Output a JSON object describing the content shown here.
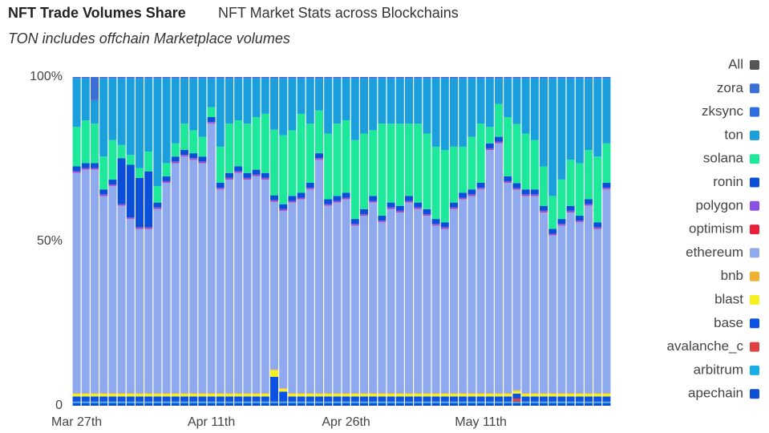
{
  "chart_data": {
    "type": "bar",
    "stacked": true,
    "title": "NFT Trade Volumes Share",
    "subtitle": "NFT Market Stats across Blockchains",
    "annotation": "TON includes offchain Marketplace volumes",
    "categories": [
      "Mar 27th",
      null,
      null,
      null,
      null,
      null,
      null,
      null,
      null,
      null,
      null,
      null,
      null,
      null,
      null,
      "Apr 11th",
      null,
      null,
      null,
      null,
      null,
      null,
      null,
      null,
      null,
      null,
      null,
      null,
      null,
      null,
      "Apr 26th",
      null,
      null,
      null,
      null,
      null,
      null,
      null,
      null,
      null,
      null,
      null,
      null,
      null,
      null,
      "May 11th",
      null,
      null,
      null,
      null,
      null,
      null,
      null,
      null,
      null,
      null,
      null,
      null,
      null,
      null
    ],
    "ylim": [
      0,
      100
    ],
    "yticks": [
      {
        "value": 0,
        "label": "0"
      },
      {
        "value": 50,
        "label": "50%"
      },
      {
        "value": 100,
        "label": "100%"
      }
    ],
    "legend_all": {
      "name": "All",
      "color": "#555555"
    },
    "series": [
      {
        "name": "apechain",
        "color": "#0a4fd6",
        "values": [
          0.8,
          0.8,
          0.8,
          0.8,
          0.8,
          0.8,
          0.8,
          0.8,
          0.8,
          0.8,
          0.8,
          0.8,
          0.8,
          0.8,
          0.8,
          0.8,
          0.8,
          0.8,
          0.8,
          0.8,
          0.8,
          0.8,
          0.8,
          0.8,
          0.8,
          0.8,
          0.8,
          0.8,
          0.8,
          0.8,
          0.8,
          0.8,
          0.8,
          0.8,
          0.8,
          0.8,
          0.8,
          0.8,
          0.8,
          0.8,
          0.8,
          0.8,
          0.8,
          0.8,
          0.8,
          0.8,
          0.8,
          0.8,
          0.8,
          0.8,
          0.8,
          0.8,
          0.8,
          0.8,
          0.8,
          0.8,
          0.8,
          0.8,
          0.8,
          0.8
        ]
      },
      {
        "name": "arbitrum",
        "color": "#1aaee8",
        "values": [
          0.4,
          0.4,
          0.4,
          0.4,
          0.4,
          0.4,
          0.4,
          0.4,
          0.4,
          0.4,
          0.4,
          0.4,
          0.4,
          0.4,
          0.4,
          0.4,
          0.4,
          0.4,
          0.4,
          0.4,
          0.4,
          0.4,
          0.4,
          0.4,
          0.4,
          0.4,
          0.4,
          0.4,
          0.4,
          0.4,
          0.4,
          0.4,
          0.4,
          0.4,
          0.4,
          0.4,
          0.4,
          0.4,
          0.4,
          0.4,
          0.4,
          0.4,
          0.4,
          0.4,
          0.4,
          0.4,
          0.4,
          0.4,
          0.4,
          0.4,
          0.4,
          0.4,
          0.4,
          0.4,
          0.4,
          0.4,
          0.4,
          0.4,
          0.4,
          0.4
        ]
      },
      {
        "name": "avalanche_c",
        "color": "#e04040",
        "values": [
          0.1,
          0.1,
          0.1,
          0.1,
          0.1,
          0.1,
          0.1,
          0.1,
          0.1,
          0.1,
          0.1,
          0.1,
          0.1,
          0.1,
          0.1,
          0.1,
          0.1,
          0.1,
          0.1,
          0.1,
          0.1,
          0.1,
          0.1,
          0.1,
          0.1,
          0.1,
          0.1,
          0.1,
          0.1,
          0.1,
          0.1,
          0.1,
          0.1,
          0.1,
          0.1,
          0.1,
          0.1,
          0.1,
          0.1,
          0.1,
          0.1,
          0.1,
          0.1,
          0.1,
          0.1,
          0.1,
          0.1,
          0.1,
          0.1,
          1.0,
          0.1,
          0.1,
          0.1,
          0.1,
          0.1,
          0.1,
          0.1,
          0.1,
          0.1,
          0.1
        ]
      },
      {
        "name": "base",
        "color": "#0a52e6",
        "values": [
          1.5,
          1.5,
          1.5,
          1.5,
          1.5,
          1.5,
          1.5,
          1.5,
          1.5,
          1.5,
          1.5,
          1.5,
          1.5,
          1.5,
          1.5,
          1.5,
          1.5,
          1.5,
          1.5,
          1.5,
          1.5,
          1.5,
          7.5,
          3,
          1.5,
          1.5,
          1.5,
          1.5,
          1.5,
          1.5,
          1.5,
          1.5,
          1.5,
          1.5,
          1.5,
          1.5,
          1.5,
          1.5,
          1.5,
          1.5,
          1.5,
          1.5,
          1.5,
          1.5,
          1.5,
          1.5,
          1.5,
          1.5,
          1.5,
          1.5,
          1.5,
          1.5,
          1.5,
          1.5,
          1.5,
          1.5,
          1.5,
          1.5,
          1.5,
          1.5
        ]
      },
      {
        "name": "blast",
        "color": "#f4f020",
        "values": [
          0.8,
          0.8,
          0.8,
          0.8,
          0.8,
          0.8,
          0.8,
          0.8,
          0.8,
          0.8,
          0.8,
          0.8,
          0.8,
          0.8,
          0.8,
          0.8,
          0.8,
          0.8,
          0.8,
          0.8,
          0.8,
          0.8,
          2,
          0.8,
          0.8,
          0.8,
          0.8,
          0.8,
          0.8,
          0.8,
          0.8,
          0.8,
          0.8,
          0.8,
          0.8,
          0.8,
          0.8,
          0.8,
          0.8,
          0.8,
          0.8,
          0.8,
          0.8,
          0.8,
          0.8,
          0.8,
          0.8,
          0.8,
          0.8,
          0.8,
          0.8,
          0.8,
          0.8,
          0.8,
          0.8,
          0.8,
          0.8,
          0.8,
          0.8,
          0.8
        ]
      },
      {
        "name": "bnb",
        "color": "#f0b030",
        "values": [
          0.2,
          0.2,
          0.2,
          0.2,
          0.2,
          0.2,
          0.2,
          0.2,
          0.2,
          0.2,
          0.2,
          0.2,
          0.2,
          0.2,
          0.2,
          0.2,
          0.2,
          0.2,
          0.2,
          0.2,
          0.2,
          0.2,
          0.2,
          0.2,
          0.2,
          0.2,
          0.2,
          0.2,
          0.2,
          0.2,
          0.2,
          0.2,
          0.2,
          0.2,
          0.2,
          0.2,
          0.2,
          0.2,
          0.2,
          0.2,
          0.2,
          0.2,
          0.2,
          0.2,
          0.2,
          0.2,
          0.2,
          0.2,
          0.2,
          0.2,
          0.2,
          0.2,
          0.2,
          0.2,
          0.2,
          0.2,
          0.2,
          0.2,
          0.2,
          0.2
        ]
      },
      {
        "name": "ethereum",
        "color": "#8fa9ee",
        "values": [
          67,
          68,
          68,
          60,
          63,
          57,
          53,
          50,
          50,
          56,
          64,
          70,
          72,
          71,
          70,
          82,
          62,
          65,
          67,
          65,
          66,
          65,
          51,
          54,
          58,
          59,
          62,
          71,
          57,
          58,
          59,
          51,
          54,
          58,
          52,
          56,
          55,
          58,
          56,
          54,
          51,
          50,
          56,
          59,
          60,
          62,
          74,
          76,
          64,
          61,
          60,
          60,
          55,
          48,
          51,
          55,
          52,
          57,
          50,
          62
        ]
      },
      {
        "name": "optimism",
        "color": "#e8203a",
        "values": [
          0.1,
          0.1,
          0.1,
          0.1,
          0.1,
          0.1,
          0.1,
          0.1,
          0.1,
          0.1,
          0.1,
          0.1,
          0.1,
          0.1,
          0.1,
          0.1,
          0.1,
          0.1,
          0.1,
          0.1,
          0.1,
          0.1,
          0.1,
          0.1,
          0.1,
          0.1,
          0.1,
          0.1,
          0.1,
          0.1,
          0.1,
          0.1,
          0.1,
          0.1,
          0.1,
          0.1,
          0.1,
          0.1,
          0.1,
          0.1,
          0.1,
          0.1,
          0.1,
          0.1,
          0.1,
          0.1,
          0.1,
          0.1,
          0.1,
          0.1,
          0.1,
          0.1,
          0.1,
          0.1,
          0.1,
          0.1,
          0.1,
          0.1,
          0.1,
          0.1
        ]
      },
      {
        "name": "polygon",
        "color": "#8c4fe6",
        "values": [
          0.4,
          0.4,
          0.4,
          0.4,
          0.4,
          0.4,
          0.4,
          0.4,
          0.4,
          0.4,
          0.4,
          0.4,
          0.4,
          0.4,
          0.4,
          0.4,
          0.4,
          0.4,
          0.4,
          0.4,
          0.4,
          0.4,
          0.4,
          0.4,
          0.4,
          0.4,
          0.4,
          0.4,
          0.4,
          0.4,
          0.4,
          0.4,
          0.4,
          0.4,
          0.4,
          0.4,
          0.4,
          0.4,
          0.4,
          0.4,
          0.4,
          0.4,
          0.4,
          0.4,
          0.4,
          0.4,
          0.4,
          0.4,
          0.4,
          0.4,
          0.4,
          0.4,
          0.4,
          0.4,
          0.4,
          0.4,
          0.4,
          0.4,
          0.4,
          0.4
        ]
      },
      {
        "name": "ronin",
        "color": "#0b4fd9",
        "values": [
          1.5,
          1.5,
          1.5,
          1.5,
          1.5,
          14,
          16,
          15,
          17,
          1.5,
          1.5,
          1.5,
          1.5,
          1.5,
          1.5,
          1.5,
          1.5,
          1.5,
          1.5,
          1.5,
          1.5,
          1.5,
          1.5,
          1.5,
          1.5,
          1.5,
          1.5,
          1.5,
          1.5,
          1.5,
          1.5,
          1.5,
          1.5,
          1.5,
          1.5,
          1.5,
          1.5,
          1.5,
          1.5,
          1.5,
          1.5,
          1.5,
          1.5,
          1.5,
          1.5,
          1.5,
          1.5,
          1.5,
          1.5,
          1.5,
          1.5,
          1.5,
          1.5,
          1.5,
          1.5,
          1.5,
          1.5,
          1.5,
          1.5,
          1.5
        ]
      },
      {
        "name": "solana",
        "color": "#1ee89a",
        "values": [
          12,
          13,
          12,
          10,
          12,
          4,
          3,
          3,
          6,
          5,
          4,
          4,
          8,
          7,
          6,
          3,
          11,
          15,
          14,
          15,
          16,
          18,
          20,
          21,
          20,
          24,
          18,
          13,
          20,
          22,
          22,
          24,
          23,
          20,
          28,
          24,
          25,
          22,
          24,
          23,
          22,
          22,
          17,
          14,
          16,
          18,
          5,
          10,
          18,
          18,
          17,
          15,
          12,
          10,
          12,
          14,
          16,
          15,
          20,
          12
        ]
      },
      {
        "name": "ton",
        "color": "#1a9fdc",
        "values": [
          14.7,
          12.7,
          7.0,
          23.7,
          18.7,
          20.2,
          23.2,
          27.2,
          22.2,
          32.7,
          25.7,
          19.7,
          13.7,
          15.7,
          17.7,
          8.7,
          20.7,
          13.7,
          12.7,
          13.7,
          11.7,
          10.7,
          15.5,
          17.2,
          15.7,
          10.7,
          13.7,
          9.7,
          16.7,
          13.7,
          12.7,
          18.7,
          16.7,
          15.7,
          13.7,
          13.7,
          13.7,
          13.7,
          13.7,
          16.7,
          20.7,
          21.7,
          20.7,
          20.7,
          17.7,
          13.7,
          14.7,
          7.7,
          11.7,
          13.8,
          16.7,
          18.7,
          26.7,
          35.7,
          30.7,
          24.7,
          25.7,
          21.7,
          23.7,
          19.7
        ]
      },
      {
        "name": "zksync",
        "color": "#2f6ee0",
        "values": [
          0.2,
          0.2,
          0.2,
          0.2,
          0.2,
          0.2,
          0.2,
          0.2,
          0.2,
          0.2,
          0.2,
          0.2,
          0.2,
          0.2,
          0.2,
          0.2,
          0.2,
          0.2,
          0.2,
          0.2,
          0.2,
          0.2,
          0.2,
          0.2,
          0.2,
          0.2,
          0.2,
          0.2,
          0.2,
          0.2,
          0.2,
          0.2,
          0.2,
          0.2,
          0.2,
          0.2,
          0.2,
          0.2,
          0.2,
          0.2,
          0.2,
          0.2,
          0.2,
          0.2,
          0.2,
          0.2,
          0.2,
          0.2,
          0.2,
          0.2,
          0.2,
          0.2,
          0.2,
          0.2,
          0.2,
          0.2,
          0.2,
          0.2,
          0.2,
          0.2
        ]
      },
      {
        "name": "zora",
        "color": "#3b6fd6",
        "values": [
          0.3,
          0.3,
          7,
          0.3,
          0.3,
          0.3,
          0.3,
          0.3,
          0.3,
          0.3,
          0.3,
          0.3,
          0.3,
          0.3,
          0.3,
          0.3,
          0.3,
          0.3,
          0.3,
          0.3,
          0.3,
          0.3,
          0.3,
          0.3,
          0.3,
          0.3,
          0.3,
          0.3,
          0.3,
          0.3,
          0.3,
          0.3,
          0.3,
          0.3,
          0.3,
          0.3,
          0.3,
          0.3,
          0.3,
          0.3,
          0.3,
          0.3,
          0.3,
          0.3,
          0.3,
          0.3,
          0.3,
          0.3,
          0.3,
          0.3,
          0.3,
          0.3,
          0.3,
          0.3,
          0.3,
          0.3,
          0.3,
          0.3,
          0.3,
          0.3
        ]
      }
    ]
  }
}
